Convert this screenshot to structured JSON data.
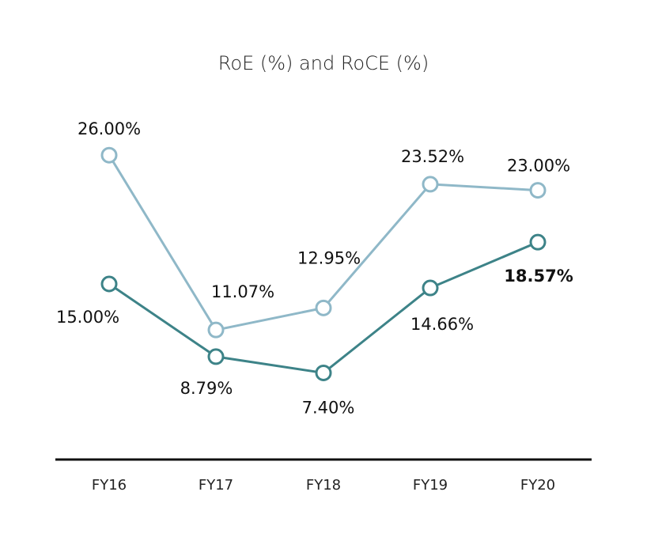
{
  "chart_data": {
    "type": "line",
    "title": "RoE (%) and RoCE (%)",
    "xlabel": "",
    "ylabel": "",
    "categories": [
      "FY16",
      "FY17",
      "FY18",
      "FY19",
      "FY20"
    ],
    "ylim": [
      0,
      35
    ],
    "grid": false,
    "legend": "none",
    "series": [
      {
        "color": "#8fb8c8",
        "values": [
          26.0,
          11.07,
          12.95,
          23.52,
          23.0
        ],
        "labels": [
          "26.00%",
          "11.07%",
          "12.95%",
          "23.52%",
          "23.00%"
        ]
      },
      {
        "color": "#3d8388",
        "values": [
          15.0,
          8.79,
          7.4,
          14.66,
          18.57
        ],
        "labels": [
          "15.00%",
          "8.79%",
          "7.40%",
          "14.66%",
          "18.57%"
        ]
      }
    ]
  }
}
